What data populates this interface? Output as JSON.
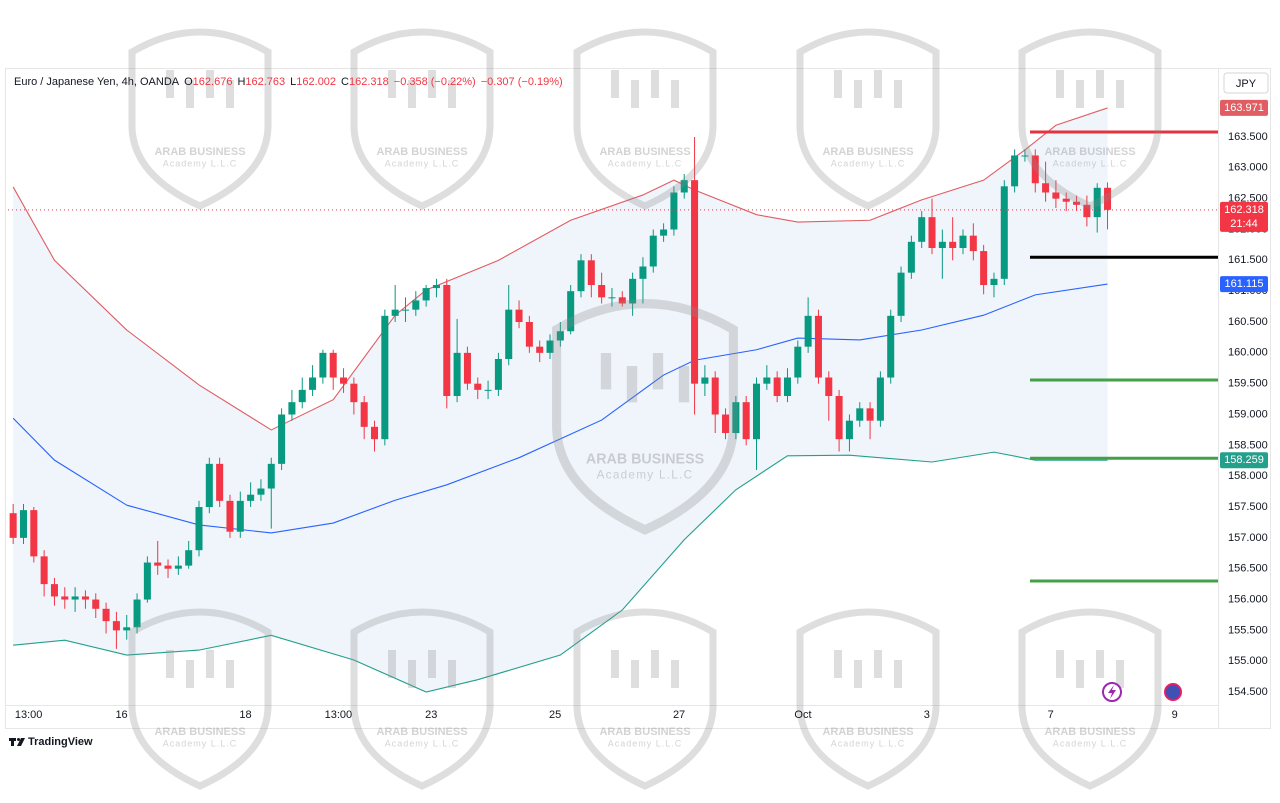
{
  "chart_data": {
    "type": "candlestick",
    "title": "Euro / Japanese Yen, 4h, OANDA",
    "ohlc_letters": [
      "O",
      "H",
      "L",
      "C"
    ],
    "changes": [
      "−0.358 (−0.22%)",
      "−0.307 (−0.19%)"
    ],
    "currency": "JPY",
    "countdown": "21:44",
    "up_color": "#089981",
    "down_color": "#f23645",
    "candles": {
      "open": [
        157.4,
        157.0,
        157.45,
        156.7,
        156.25,
        156.05,
        156.0,
        156.05,
        156.0,
        155.85,
        155.65,
        155.5,
        155.55,
        156.0,
        156.6,
        156.55,
        156.5,
        156.55,
        156.8,
        157.5,
        158.2,
        157.6,
        157.1,
        157.6,
        157.7,
        157.8,
        158.2,
        159.0,
        159.2,
        159.4,
        159.6,
        160.0,
        159.6,
        159.5,
        159.2,
        158.8,
        158.6,
        160.6,
        160.7,
        160.7,
        160.85,
        161.05,
        161.1,
        159.3,
        160.0,
        159.5,
        159.4,
        159.4,
        159.9,
        160.7,
        160.5,
        160.1,
        160.0,
        160.2,
        160.35,
        161.0,
        161.5,
        161.1,
        160.9,
        160.9,
        160.8,
        161.2,
        161.4,
        161.9,
        162.0,
        162.6,
        162.8,
        159.5,
        159.6,
        159.0,
        158.7,
        159.2,
        158.6,
        159.5,
        159.6,
        159.3,
        159.6,
        160.1,
        160.6,
        159.6,
        159.3,
        158.6,
        158.9,
        159.1,
        158.9,
        159.6,
        160.6,
        161.3,
        161.8,
        162.2,
        161.7,
        161.8,
        161.7,
        161.9,
        161.65,
        161.1,
        161.2,
        162.7,
        163.2,
        163.2,
        162.75,
        162.6,
        162.5,
        162.45,
        162.4,
        162.2,
        162.676
      ],
      "high": [
        157.55,
        157.55,
        157.5,
        156.8,
        156.35,
        156.2,
        156.2,
        156.15,
        156.1,
        155.95,
        155.8,
        155.75,
        156.1,
        156.7,
        156.95,
        156.65,
        156.7,
        156.95,
        157.6,
        158.3,
        158.3,
        157.7,
        157.75,
        157.9,
        157.95,
        158.3,
        159.1,
        159.4,
        159.6,
        159.8,
        160.05,
        160.05,
        159.75,
        159.6,
        159.3,
        158.9,
        160.7,
        161.1,
        160.9,
        161.0,
        161.1,
        161.2,
        161.2,
        160.55,
        160.1,
        159.6,
        159.55,
        160.0,
        161.1,
        160.85,
        160.6,
        160.2,
        160.3,
        160.5,
        161.1,
        161.6,
        161.6,
        161.3,
        161.05,
        161.0,
        161.3,
        161.55,
        162.0,
        162.1,
        162.7,
        162.9,
        163.5,
        159.8,
        159.7,
        159.1,
        159.3,
        159.3,
        159.6,
        159.8,
        159.7,
        159.75,
        160.2,
        160.9,
        160.7,
        159.7,
        159.4,
        159.0,
        159.2,
        159.2,
        159.7,
        160.7,
        161.4,
        161.9,
        162.3,
        162.5,
        162.0,
        162.2,
        162.0,
        162.1,
        161.75,
        161.3,
        162.8,
        163.3,
        163.3,
        163.3,
        163.1,
        162.8,
        162.6,
        162.55,
        162.55,
        162.75,
        162.763
      ],
      "low": [
        156.9,
        156.9,
        156.6,
        156.05,
        155.9,
        155.85,
        155.8,
        155.85,
        155.7,
        155.45,
        155.2,
        155.35,
        155.45,
        155.95,
        156.4,
        156.35,
        156.4,
        156.5,
        156.7,
        157.4,
        157.5,
        157.0,
        157.0,
        157.5,
        157.6,
        157.15,
        158.1,
        158.9,
        159.1,
        159.3,
        159.5,
        159.4,
        159.35,
        159.0,
        158.6,
        158.4,
        158.5,
        160.5,
        160.5,
        160.6,
        160.75,
        160.9,
        159.1,
        159.2,
        159.4,
        159.25,
        159.25,
        159.3,
        159.8,
        160.4,
        160.0,
        159.85,
        159.9,
        160.1,
        160.3,
        160.9,
        160.9,
        160.8,
        160.75,
        160.75,
        160.6,
        160.8,
        161.3,
        161.8,
        161.9,
        162.5,
        159.0,
        159.3,
        158.7,
        158.6,
        158.6,
        158.5,
        158.1,
        159.4,
        159.2,
        159.2,
        159.5,
        160.0,
        159.5,
        158.9,
        158.4,
        158.4,
        158.8,
        158.6,
        158.8,
        159.5,
        160.5,
        161.2,
        161.7,
        161.6,
        161.2,
        161.5,
        161.6,
        161.5,
        160.95,
        160.9,
        161.1,
        162.6,
        163.1,
        162.6,
        162.45,
        162.35,
        162.3,
        162.3,
        162.05,
        161.95,
        162.002
      ],
      "close": [
        157.0,
        157.45,
        156.7,
        156.25,
        156.05,
        156.0,
        156.05,
        156.0,
        155.85,
        155.65,
        155.5,
        155.55,
        156.0,
        156.6,
        156.55,
        156.5,
        156.55,
        156.8,
        157.5,
        158.2,
        157.6,
        157.1,
        157.6,
        157.7,
        157.8,
        158.2,
        159.0,
        159.2,
        159.4,
        159.6,
        160.0,
        159.6,
        159.5,
        159.2,
        158.8,
        158.6,
        160.6,
        160.7,
        160.7,
        160.85,
        161.05,
        161.1,
        159.3,
        160.0,
        159.5,
        159.4,
        159.4,
        159.9,
        160.7,
        160.5,
        160.1,
        160.0,
        160.2,
        160.35,
        161.0,
        161.5,
        161.1,
        160.9,
        160.9,
        160.8,
        161.2,
        161.4,
        161.9,
        162.0,
        162.6,
        162.8,
        159.5,
        159.6,
        159.0,
        158.7,
        159.2,
        158.6,
        159.5,
        159.6,
        159.3,
        159.6,
        160.1,
        160.6,
        159.6,
        159.3,
        158.6,
        158.9,
        159.1,
        158.9,
        159.6,
        160.6,
        161.3,
        161.8,
        162.2,
        161.7,
        161.8,
        161.7,
        161.9,
        161.65,
        161.1,
        161.2,
        162.7,
        163.2,
        163.2,
        162.75,
        162.6,
        162.5,
        162.45,
        162.4,
        162.2,
        162.676,
        162.318
      ]
    },
    "bands": [
      {
        "color": "#e05d62",
        "x": [
          0,
          4,
          11,
          18,
          25,
          31,
          37,
          40,
          47,
          54,
          61,
          64,
          66,
          72,
          76,
          83,
          88,
          94,
          98,
          101,
          106
        ],
        "values": [
          162.69,
          161.5,
          160.37,
          159.48,
          158.75,
          159.24,
          160.61,
          161.02,
          161.5,
          162.15,
          162.56,
          162.8,
          162.64,
          162.24,
          162.12,
          162.15,
          162.48,
          162.8,
          163.29,
          163.69,
          163.971
        ]
      },
      {
        "color": "#2962ff",
        "x": [
          0,
          4,
          11,
          18,
          25,
          31,
          37,
          42,
          49,
          57,
          63,
          66,
          72,
          76,
          82,
          88,
          94,
          99,
          106
        ],
        "values": [
          158.94,
          158.26,
          157.53,
          157.21,
          157.08,
          157.24,
          157.61,
          157.86,
          158.3,
          158.91,
          159.64,
          159.88,
          160.05,
          160.24,
          160.21,
          160.37,
          160.61,
          160.94,
          161.115
        ]
      },
      {
        "color": "#22a08b",
        "x": [
          0,
          5,
          11,
          18,
          25,
          33,
          40,
          45,
          53,
          59,
          65,
          70,
          75,
          81,
          89,
          95,
          99,
          106
        ],
        "values": [
          155.26,
          155.34,
          155.1,
          155.18,
          155.42,
          155.02,
          154.5,
          154.7,
          155.1,
          155.83,
          156.97,
          157.78,
          158.33,
          158.34,
          158.23,
          158.39,
          158.26,
          158.259
        ]
      }
    ],
    "band_fill": "#e8f1fa",
    "levels": [
      {
        "value": 163.58,
        "color": "#e4333f"
      },
      {
        "value": 161.55,
        "color": "#000000"
      },
      {
        "value": 159.56,
        "color": "#43a047"
      },
      {
        "value": 158.29,
        "color": "#43a047"
      },
      {
        "value": 156.3,
        "color": "#43a047"
      }
    ],
    "xlim": [
      -0.5,
      116.7
    ],
    "xticks": [
      {
        "value": 1.5,
        "label": "13:00"
      },
      {
        "value": 10.5,
        "label": "16"
      },
      {
        "value": 22.5,
        "label": "18"
      },
      {
        "value": 31.5,
        "label": "13:00"
      },
      {
        "value": 40.5,
        "label": "23"
      },
      {
        "value": 52.5,
        "label": "25"
      },
      {
        "value": 64.5,
        "label": "27"
      },
      {
        "value": 76.5,
        "label": "Oct"
      },
      {
        "value": 88.5,
        "label": "3"
      },
      {
        "value": 100.5,
        "label": "7"
      },
      {
        "value": 112.5,
        "label": "9"
      }
    ],
    "ylim": [
      154.29,
      164.586
    ],
    "yticks": [
      {
        "value": 154.5,
        "label": "154.500"
      },
      {
        "value": 155,
        "label": "155.000"
      },
      {
        "value": 155.5,
        "label": "155.500"
      },
      {
        "value": 156,
        "label": "156.000"
      },
      {
        "value": 156.5,
        "label": "156.500"
      },
      {
        "value": 157,
        "label": "157.000"
      },
      {
        "value": 157.5,
        "label": "157.500"
      },
      {
        "value": 158,
        "label": "158.000"
      },
      {
        "value": 158.5,
        "label": "158.500"
      },
      {
        "value": 159,
        "label": "159.000"
      },
      {
        "value": 159.5,
        "label": "159.500"
      },
      {
        "value": 160,
        "label": "160.000"
      },
      {
        "value": 160.5,
        "label": "160.500"
      },
      {
        "value": 161,
        "label": "161.000"
      },
      {
        "value": 161.5,
        "label": "161.500"
      },
      {
        "value": 162,
        "label": "162.000"
      },
      {
        "value": 162.5,
        "label": "162.500"
      },
      {
        "value": 163,
        "label": "163.000"
      },
      {
        "value": 163.5,
        "label": "163.500"
      }
    ],
    "brand": "TradingView",
    "watermark": {
      "name": "ARAB BUSINESS",
      "sub": "Academy L.L.C"
    }
  }
}
